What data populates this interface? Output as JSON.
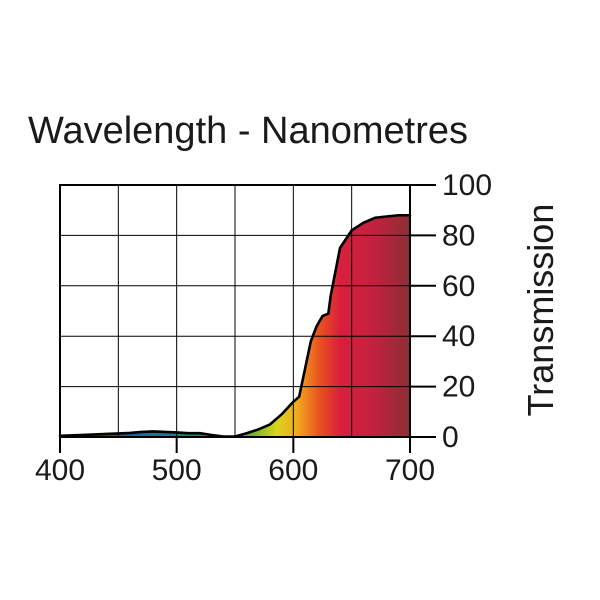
{
  "chart_data": {
    "type": "area",
    "title": "Wavelength - Nanometres",
    "xlabel": "",
    "ylabel": "Transmission",
    "xlim": [
      400,
      700
    ],
    "ylim": [
      0,
      100
    ],
    "x_ticks": [
      400,
      500,
      600,
      700
    ],
    "y_ticks": [
      0,
      20,
      40,
      60,
      80,
      100
    ],
    "x_ticks_labels": [
      "400",
      "500",
      "600",
      "700"
    ],
    "y_ticks_labels": [
      "0",
      "20",
      "40",
      "60",
      "80",
      "100"
    ],
    "grid": true,
    "x_grid_step": 50,
    "y_grid_step": 20,
    "series": [
      {
        "name": "Transmission",
        "x": [
          400,
          420,
          440,
          460,
          470,
          480,
          490,
          500,
          510,
          520,
          530,
          540,
          550,
          560,
          570,
          580,
          590,
          600,
          605,
          610,
          615,
          620,
          625,
          630,
          632,
          640,
          650,
          660,
          670,
          680,
          690,
          700
        ],
        "values": [
          0.5,
          0.8,
          1.2,
          1.6,
          2.0,
          2.2,
          2.0,
          1.8,
          1.5,
          1.5,
          0.8,
          0.2,
          0.2,
          1.5,
          3.0,
          5.0,
          9.0,
          14.0,
          16.0,
          27.0,
          38.0,
          44.0,
          48.0,
          49.0,
          56.0,
          75.0,
          82.0,
          85.0,
          87.0,
          87.5,
          88.0,
          88.0
        ]
      }
    ],
    "colors": {
      "line": "#000000",
      "grid": "#000000",
      "spectrum": [
        "#1f3d8c",
        "#1a6fa0",
        "#1b8f5a",
        "#2a9a3a",
        "#d9d41c",
        "#f2a620",
        "#e8531f",
        "#d8203d",
        "#c1213e",
        "#8a2f35"
      ]
    }
  }
}
